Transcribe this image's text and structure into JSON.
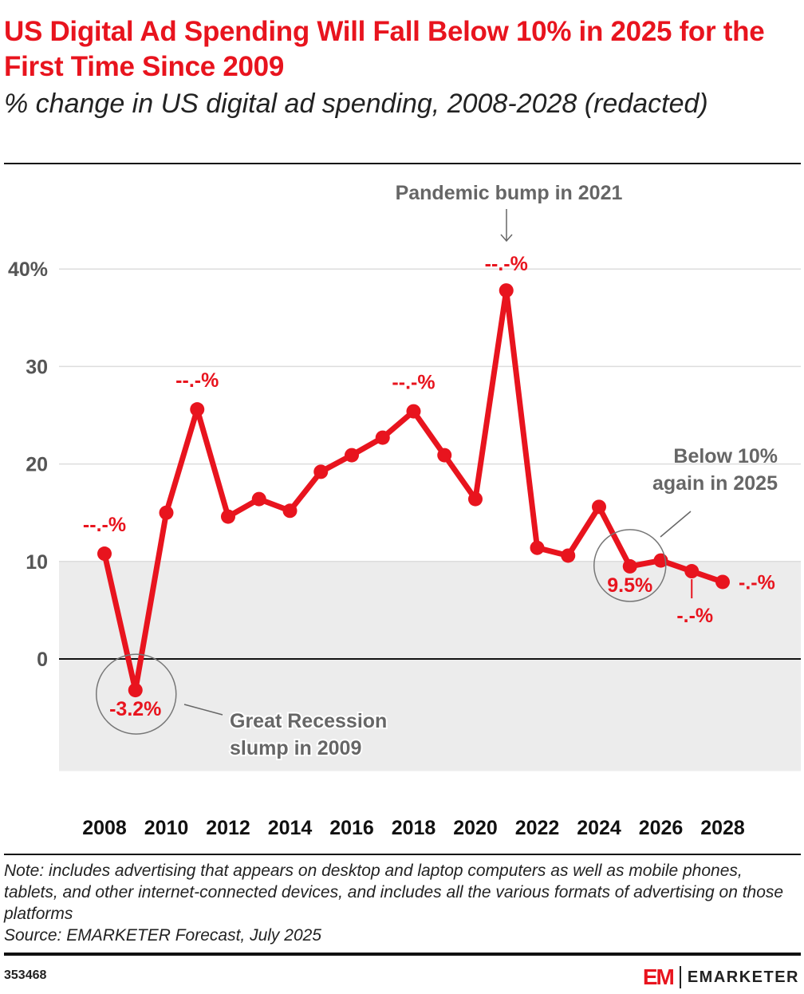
{
  "header": {
    "title": "US Digital Ad Spending Will Fall Below 10% in 2025 for the First Time Since 2009",
    "subtitle": "% change in US digital ad spending, 2008-2028 (redacted)"
  },
  "chart_data": {
    "type": "line",
    "title": "US Digital Ad Spending Will Fall Below 10% in 2025 for the First Time Since 2009",
    "subtitle": "% change in US digital ad spending, 2008-2028 (redacted)",
    "x": [
      2008,
      2009,
      2010,
      2011,
      2012,
      2013,
      2014,
      2015,
      2016,
      2017,
      2018,
      2019,
      2020,
      2021,
      2022,
      2023,
      2024,
      2025,
      2026,
      2027,
      2028
    ],
    "series": [
      {
        "name": "% change",
        "color": "#e8141e",
        "values": [
          10.8,
          -3.2,
          15.0,
          25.6,
          14.6,
          16.4,
          15.2,
          19.2,
          20.9,
          22.7,
          25.4,
          20.9,
          16.4,
          37.8,
          11.4,
          10.6,
          15.6,
          9.5,
          10.1,
          9.0,
          7.9
        ]
      }
    ],
    "ylim": [
      -11.5,
      40
    ],
    "yticks": [
      {
        "v": 40,
        "label": "40%"
      },
      {
        "v": 30,
        "label": "30"
      },
      {
        "v": 20,
        "label": "20"
      },
      {
        "v": 10,
        "label": "10"
      },
      {
        "v": 0,
        "label": "0"
      }
    ],
    "xticks": [
      "2008",
      "2010",
      "2012",
      "2014",
      "2016",
      "2018",
      "2020",
      "2022",
      "2024",
      "2026",
      "2028"
    ],
    "shaded_below": 10,
    "grid": true,
    "data_labels": [
      {
        "year": 2008,
        "text": "--.-%",
        "pos": "above"
      },
      {
        "year": 2009,
        "text": "-3.2%",
        "pos": "below"
      },
      {
        "year": 2011,
        "text": "--.-%",
        "pos": "above"
      },
      {
        "year": 2018,
        "text": "--.-%",
        "pos": "above"
      },
      {
        "year": 2021,
        "text": "--.-%",
        "pos": "above"
      },
      {
        "year": 2025,
        "text": "9.5%",
        "pos": "below"
      },
      {
        "year": 2027,
        "text": "-.-%",
        "pos": "below-leader"
      },
      {
        "year": 2028,
        "text": "-.-%",
        "pos": "right"
      }
    ],
    "annotations": {
      "pandemic": "Pandemic bump in 2021",
      "below10": [
        "Below 10%",
        "again in 2025"
      ],
      "recession": [
        "Great Recession",
        "slump in 2009"
      ]
    }
  },
  "footer": {
    "note": "Note: includes advertising that appears on desktop and laptop computers as well as mobile phones, tablets, and other internet-connected devices, and includes all the various formats of advertising on those platforms",
    "source": "Source: EMARKETER Forecast, July 2025",
    "id": "353468",
    "logo_mark": "EM",
    "logo_word": "EMARKETER"
  }
}
